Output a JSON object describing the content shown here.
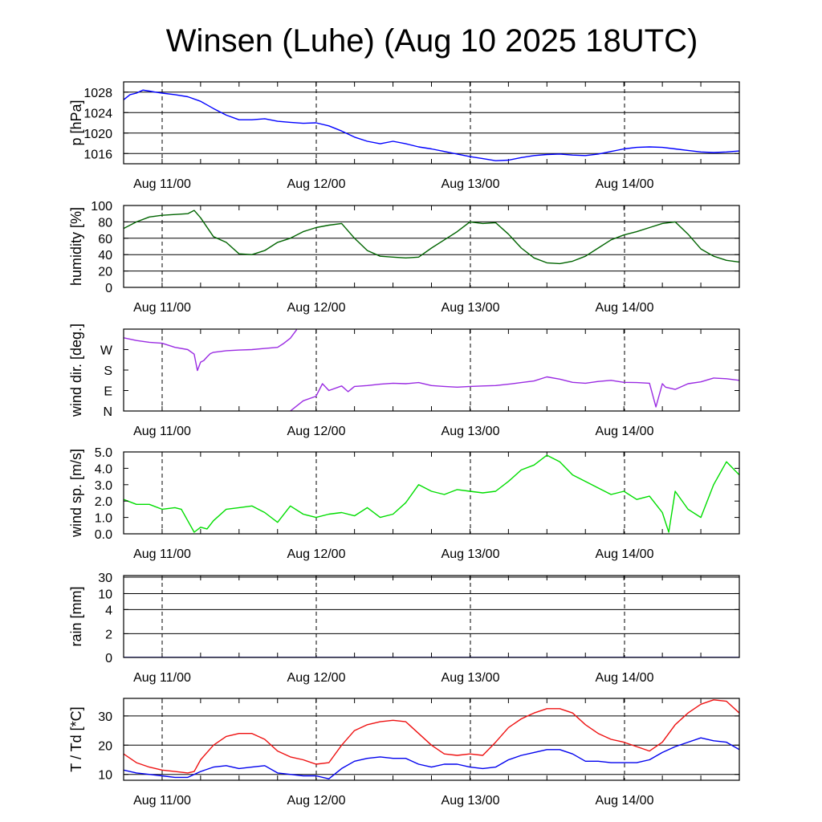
{
  "title": "Winsen (Luhe) (Aug 10 2025 18UTC)",
  "x_tick_labels": [
    "Aug 11/00",
    "Aug 12/00",
    "Aug 13/00",
    "Aug 14/00"
  ],
  "chart_data": [
    {
      "type": "line",
      "name": "pressure",
      "ylabel": "p [hPa]",
      "ylim": [
        1014,
        1030
      ],
      "ytick_labels": [
        "1016",
        "1020",
        "1024",
        "1028"
      ],
      "grid": true,
      "color": "#0000ff",
      "series": [
        {
          "x": [
            0,
            1,
            2,
            3,
            4,
            5,
            6,
            8,
            10,
            12,
            14,
            16,
            18,
            20,
            22,
            24,
            26,
            28,
            30,
            32,
            34,
            36,
            38,
            40,
            42,
            44,
            46,
            48,
            50,
            52,
            54,
            56,
            58,
            60,
            62,
            64,
            66,
            68,
            70,
            72,
            74,
            76,
            78,
            80,
            82,
            84,
            86,
            88,
            90,
            92,
            94,
            96
          ],
          "y": [
            1026.5,
            1027.5,
            1027.8,
            1028.4,
            1028.2,
            1028.0,
            1027.8,
            1027.5,
            1027.1,
            1026.2,
            1024.8,
            1023.5,
            1022.6,
            1022.6,
            1022.8,
            1022.3,
            1022.1,
            1021.9,
            1022.0,
            1021.4,
            1020.4,
            1019.2,
            1018.4,
            1017.9,
            1018.4,
            1017.9,
            1017.3,
            1016.9,
            1016.4,
            1015.9,
            1015.4,
            1015.0,
            1014.6,
            1014.7,
            1015.2,
            1015.6,
            1015.8,
            1015.9,
            1015.7,
            1015.6,
            1015.9,
            1016.4,
            1016.9,
            1017.2,
            1017.3,
            1017.2,
            1016.9,
            1016.6,
            1016.3,
            1016.2,
            1016.3,
            1016.5
          ]
        }
      ]
    },
    {
      "type": "line",
      "name": "humidity",
      "ylabel": "humidity [%]",
      "ylim": [
        0,
        100
      ],
      "ytick_labels": [
        "0",
        "20",
        "40",
        "60",
        "80",
        "100"
      ],
      "grid": true,
      "color": "#006400",
      "series": [
        {
          "x": [
            0,
            2,
            4,
            6,
            8,
            10,
            11,
            12,
            14,
            16,
            18,
            20,
            22,
            24,
            26,
            28,
            30,
            32,
            34,
            36,
            38,
            40,
            42,
            44,
            46,
            48,
            50,
            52,
            54,
            56,
            58,
            60,
            62,
            64,
            66,
            68,
            70,
            72,
            74,
            76,
            78,
            80,
            82,
            84,
            86,
            88,
            90,
            92,
            94,
            96
          ],
          "y": [
            72,
            80,
            86,
            88,
            89,
            90,
            94,
            85,
            62,
            55,
            41,
            40,
            45,
            55,
            60,
            68,
            73,
            76,
            78,
            60,
            45,
            38,
            37,
            36,
            37,
            48,
            58,
            68,
            80,
            78,
            79,
            65,
            48,
            36,
            30,
            29,
            32,
            38,
            48,
            58,
            64,
            68,
            73,
            78,
            80,
            65,
            47,
            38,
            33,
            31
          ]
        }
      ]
    },
    {
      "type": "line",
      "name": "wind_direction",
      "ylabel": "wind dir. [deg.]",
      "ylim": [
        0,
        360
      ],
      "ytick_labels": [
        "N",
        "E",
        "S",
        "W"
      ],
      "grid": false,
      "color": "#9a2be2",
      "series": [
        {
          "x": [
            0,
            2,
            4,
            6,
            8,
            10,
            11,
            11.5,
            12,
            12.5,
            13,
            13.5,
            14,
            16,
            18,
            20,
            22,
            24,
            25,
            26,
            27
          ],
          "y": [
            322,
            310,
            302,
            298,
            280,
            270,
            250,
            178,
            215,
            222,
            238,
            252,
            258,
            265,
            268,
            270,
            275,
            280,
            298,
            320,
            358
          ]
        },
        {
          "x": [
            26,
            28,
            30,
            31,
            32,
            34,
            35,
            36,
            38,
            40,
            42,
            44,
            46,
            48,
            50,
            52,
            54,
            56,
            58,
            60,
            62,
            64,
            66,
            68,
            70,
            72,
            74,
            76,
            78,
            80,
            82,
            83,
            84,
            84.5,
            86,
            88,
            90,
            92,
            94,
            96
          ],
          "y": [
            0,
            45,
            65,
            120,
            90,
            110,
            85,
            108,
            112,
            118,
            122,
            120,
            125,
            112,
            108,
            105,
            108,
            110,
            112,
            118,
            125,
            132,
            150,
            140,
            126,
            122,
            130,
            135,
            126,
            125,
            122,
            18,
            120,
            105,
            95,
            120,
            128,
            145,
            142,
            135
          ]
        }
      ]
    },
    {
      "type": "line",
      "name": "wind_speed",
      "ylabel": "wind sp. [m/s]",
      "ylim": [
        0,
        5
      ],
      "ytick_labels": [
        "0.0",
        "1.0",
        "2.0",
        "3.0",
        "4.0",
        "5.0"
      ],
      "grid": false,
      "color": "#00dd00",
      "series": [
        {
          "x": [
            0,
            2,
            4,
            6,
            8,
            9,
            10,
            11,
            12,
            13,
            14,
            16,
            18,
            20,
            22,
            24,
            26,
            28,
            30,
            32,
            34,
            36,
            38,
            40,
            42,
            44,
            46,
            48,
            50,
            52,
            54,
            56,
            58,
            60,
            62,
            64,
            66,
            68,
            70,
            72,
            74,
            76,
            78,
            80,
            82,
            84,
            85,
            86,
            88,
            90,
            92,
            94,
            96
          ],
          "y": [
            2.1,
            1.8,
            1.8,
            1.5,
            1.6,
            1.5,
            0.8,
            0.1,
            0.4,
            0.3,
            0.8,
            1.5,
            1.6,
            1.7,
            1.3,
            0.7,
            1.7,
            1.2,
            1.0,
            1.2,
            1.3,
            1.1,
            1.6,
            1.0,
            1.2,
            1.9,
            3.0,
            2.6,
            2.4,
            2.7,
            2.6,
            2.5,
            2.6,
            3.2,
            3.9,
            4.2,
            4.8,
            4.4,
            3.6,
            3.2,
            2.8,
            2.4,
            2.6,
            2.1,
            2.3,
            1.3,
            0.1,
            2.6,
            1.5,
            1.0,
            3.0,
            4.4,
            3.6
          ]
        }
      ]
    },
    {
      "type": "line",
      "name": "rain",
      "ylabel": "rain [mm]",
      "ylim": [
        0,
        30
      ],
      "ytick_labels": [
        "0",
        "2",
        "4",
        "10",
        "30"
      ],
      "grid": true,
      "color": "#0000ff",
      "series": [
        {
          "x": [
            0,
            96
          ],
          "y": [
            0,
            0
          ]
        }
      ]
    },
    {
      "type": "line",
      "name": "temperature_dewpoint",
      "ylabel": "T / Td [*C]",
      "ylim": [
        8,
        36
      ],
      "ytick_labels": [
        "10",
        "20",
        "30"
      ],
      "grid": true,
      "series": [
        {
          "color": "#ee1111",
          "x": [
            0,
            2,
            4,
            6,
            8,
            10,
            11,
            12,
            14,
            16,
            18,
            20,
            22,
            24,
            26,
            28,
            30,
            32,
            34,
            36,
            38,
            40,
            42,
            44,
            46,
            48,
            50,
            52,
            54,
            56,
            58,
            60,
            62,
            64,
            66,
            68,
            70,
            72,
            74,
            76,
            78,
            80,
            82,
            84,
            86,
            88,
            90,
            92,
            94,
            96
          ],
          "y": [
            17,
            14,
            12.5,
            11.5,
            11,
            10.5,
            11,
            15,
            20,
            23,
            24,
            24,
            22,
            18,
            16,
            15,
            13.5,
            14,
            20,
            25,
            27,
            28,
            28.5,
            28,
            24,
            20,
            17,
            16.5,
            17,
            16.5,
            21,
            26,
            29,
            31,
            32.5,
            32.5,
            31,
            27,
            24,
            22,
            21,
            19.5,
            18,
            21,
            27,
            31,
            34,
            35.5,
            35,
            31
          ]
        },
        {
          "color": "#0000ee",
          "x": [
            0,
            2,
            4,
            6,
            8,
            10,
            12,
            14,
            16,
            18,
            20,
            22,
            24,
            26,
            28,
            30,
            32,
            34,
            36,
            38,
            40,
            42,
            44,
            46,
            48,
            50,
            52,
            54,
            56,
            58,
            60,
            62,
            64,
            66,
            68,
            70,
            72,
            74,
            76,
            78,
            80,
            82,
            84,
            86,
            88,
            90,
            92,
            94,
            96
          ],
          "y": [
            11.5,
            10.5,
            10,
            9.5,
            9,
            9,
            11,
            12.5,
            13,
            12,
            12.5,
            13,
            10.5,
            10,
            9.5,
            9.5,
            8.5,
            12,
            14.5,
            15.5,
            16,
            15.5,
            15.5,
            13.5,
            12.5,
            13.5,
            13.5,
            12.5,
            12,
            12.5,
            15,
            16.5,
            17.5,
            18.5,
            18.5,
            17,
            14.5,
            14.5,
            14,
            14,
            14,
            15,
            17.5,
            19.5,
            21,
            22.5,
            21.5,
            21,
            18.5
          ]
        }
      ]
    }
  ]
}
